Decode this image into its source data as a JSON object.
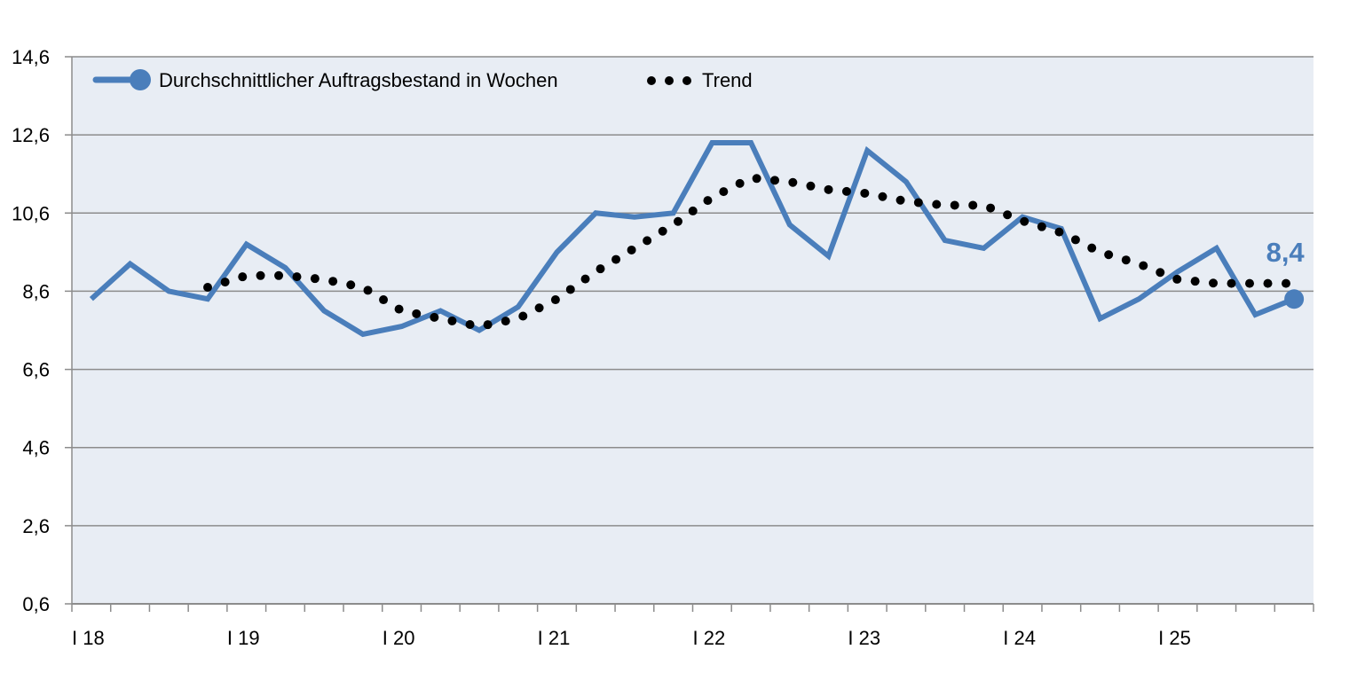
{
  "chart_data": {
    "type": "line",
    "title": "",
    "xlabel": "",
    "ylabel": "",
    "ylim": [
      0.6,
      14.6
    ],
    "yticks": [
      "14,6",
      "12,6",
      "10,6",
      "8,6",
      "6,6",
      "4,6",
      "2,6",
      "0,6"
    ],
    "ytick_values": [
      14.6,
      12.6,
      10.6,
      8.6,
      6.6,
      4.6,
      2.6,
      0.6
    ],
    "xtick_labels": [
      "I 18",
      "I 19",
      "I 20",
      "I 21",
      "I 22",
      "I 23",
      "I 24",
      "I 25"
    ],
    "grid": "horizontal",
    "legend_position": "top-left inside",
    "x": [
      "I/18",
      "II/18",
      "III/18",
      "IV/18",
      "I/19",
      "II/19",
      "III/19",
      "IV/19",
      "I/20",
      "II/20",
      "III/20",
      "IV/20",
      "I/21",
      "II/21",
      "III/21",
      "IV/21",
      "I/22",
      "II/22",
      "III/22",
      "IV/22",
      "I/23",
      "II/23",
      "III/23",
      "IV/23",
      "I/24",
      "II/24",
      "III/24",
      "IV/24",
      "I/25",
      "II/25",
      "III/25",
      "IV/25"
    ],
    "series": [
      {
        "name": "Durchschnittlicher Auftragsbestand in Wochen",
        "color": "#4a7ebb",
        "style": "solid",
        "values": [
          8.4,
          9.3,
          8.6,
          8.4,
          9.8,
          9.2,
          8.1,
          7.5,
          7.7,
          8.1,
          7.6,
          8.2,
          9.6,
          10.6,
          10.5,
          10.6,
          12.4,
          12.4,
          10.3,
          9.5,
          12.2,
          11.4,
          9.9,
          9.7,
          10.5,
          10.2,
          7.9,
          8.4,
          9.1,
          9.7,
          8.0,
          8.4
        ]
      },
      {
        "name": "Trend",
        "color": "#000000",
        "style": "dotted",
        "values": [
          null,
          null,
          null,
          8.7,
          9.0,
          9.0,
          8.9,
          8.7,
          8.1,
          7.9,
          7.7,
          7.9,
          8.4,
          9.1,
          9.7,
          10.3,
          11.0,
          11.5,
          11.4,
          11.2,
          11.1,
          10.9,
          10.8,
          10.8,
          10.4,
          10.1,
          9.6,
          9.3,
          8.9,
          8.8,
          8.8,
          8.8
        ]
      }
    ],
    "annotations": [
      {
        "text": "8,4",
        "target": "last point",
        "color": "#4a7ebb"
      }
    ]
  },
  "legend": {
    "series_label": "Durchschnittlicher Auftragsbestand in Wochen",
    "trend_label": "Trend"
  },
  "end_label": "8,4",
  "colors": {
    "plot_bg": "#e8edf4",
    "series": "#4a7ebb",
    "trend": "#000000",
    "grid": "#8c8c8c",
    "axis": "#8c8c8c"
  }
}
